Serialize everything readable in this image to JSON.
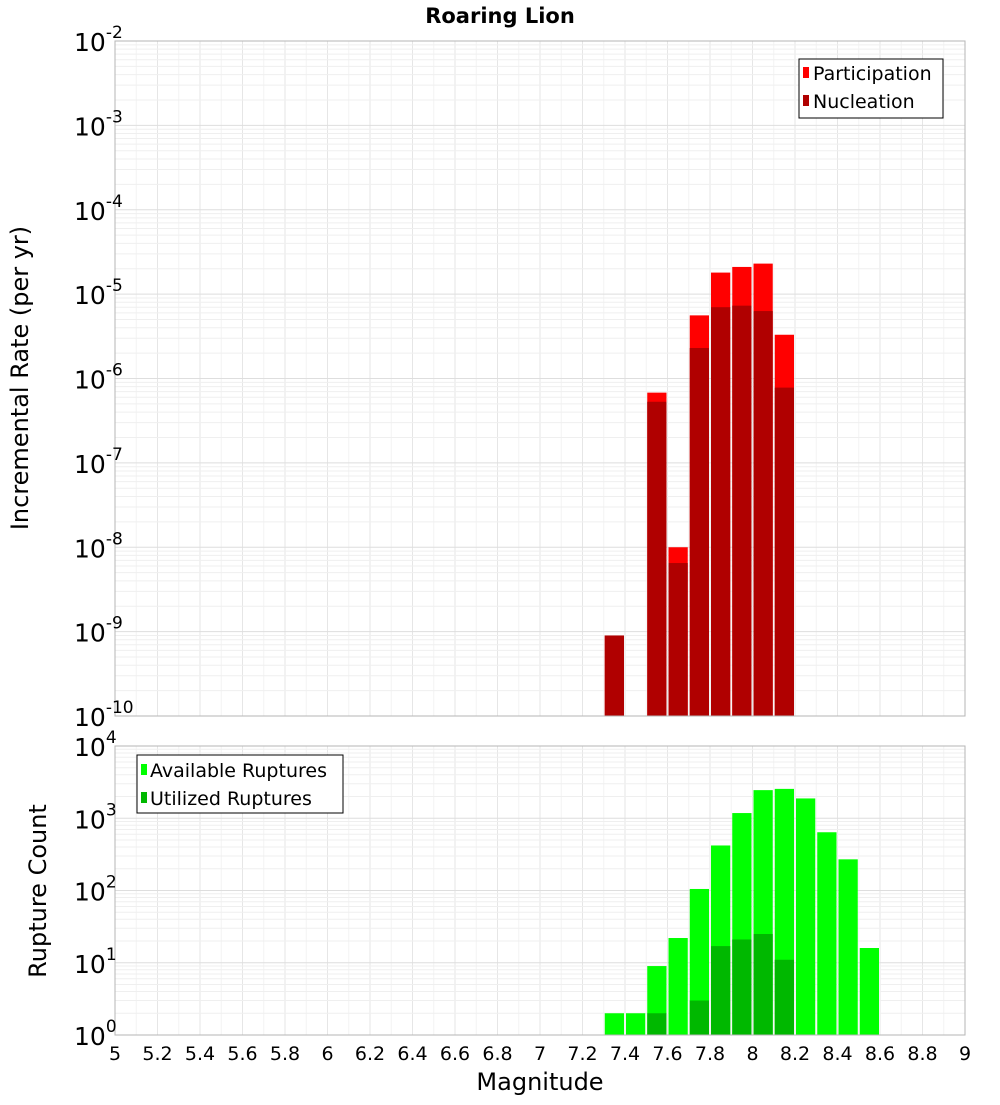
{
  "chart_data": [
    {
      "type": "bar",
      "title": "Roaring Lion",
      "xlabel": "",
      "ylabel": "Incremental Rate (per yr)",
      "yscale": "log",
      "xlim": [
        5,
        9
      ],
      "ylim_exponents": [
        -10,
        -2
      ],
      "ytick_labels": [
        "10^-10",
        "10^-9",
        "10^-8",
        "10^-7",
        "10^-6",
        "10^-5",
        "10^-4",
        "10^-3",
        "10^-2"
      ],
      "bin_width": 0.1,
      "legend_position": "top-right",
      "series": [
        {
          "name": "Participation",
          "color": "#ff0000",
          "points": [
            {
              "x": 7.35,
              "y": 9e-10
            },
            {
              "x": 7.55,
              "y": 6.8e-07
            },
            {
              "x": 7.65,
              "y": 1e-08
            },
            {
              "x": 7.75,
              "y": 5.6e-06
            },
            {
              "x": 7.85,
              "y": 1.8e-05
            },
            {
              "x": 7.95,
              "y": 2.1e-05
            },
            {
              "x": 8.05,
              "y": 2.3e-05
            },
            {
              "x": 8.15,
              "y": 3.3e-06
            }
          ]
        },
        {
          "name": "Nucleation",
          "color": "#b00000",
          "points": [
            {
              "x": 7.35,
              "y": 9e-10
            },
            {
              "x": 7.55,
              "y": 5.3e-07
            },
            {
              "x": 7.65,
              "y": 6.5e-09
            },
            {
              "x": 7.75,
              "y": 2.3e-06
            },
            {
              "x": 7.85,
              "y": 7e-06
            },
            {
              "x": 7.95,
              "y": 7.3e-06
            },
            {
              "x": 8.05,
              "y": 6.3e-06
            },
            {
              "x": 8.15,
              "y": 7.8e-07
            }
          ]
        }
      ]
    },
    {
      "type": "bar",
      "title": "",
      "xlabel": "Magnitude",
      "ylabel": "Rupture Count",
      "yscale": "log",
      "xlim": [
        5,
        9
      ],
      "ylim_exponents": [
        0,
        4
      ],
      "ytick_labels": [
        "10^0",
        "10^1",
        "10^2",
        "10^3",
        "10^4"
      ],
      "xtick_labels": [
        "5",
        "5.2",
        "5.4",
        "5.6",
        "5.8",
        "6",
        "6.2",
        "6.4",
        "6.6",
        "6.8",
        "7",
        "7.2",
        "7.4",
        "7.6",
        "7.8",
        "8",
        "8.2",
        "8.4",
        "8.6",
        "8.8",
        "9"
      ],
      "bin_width": 0.1,
      "legend_position": "top-left",
      "series": [
        {
          "name": "Available Ruptures",
          "color": "#00ff00",
          "points": [
            {
              "x": 7.35,
              "y": 2
            },
            {
              "x": 7.45,
              "y": 2
            },
            {
              "x": 7.55,
              "y": 9
            },
            {
              "x": 7.65,
              "y": 22
            },
            {
              "x": 7.75,
              "y": 105
            },
            {
              "x": 7.85,
              "y": 420
            },
            {
              "x": 7.95,
              "y": 1180
            },
            {
              "x": 8.05,
              "y": 2450
            },
            {
              "x": 8.15,
              "y": 2550
            },
            {
              "x": 8.25,
              "y": 1880
            },
            {
              "x": 8.35,
              "y": 640
            },
            {
              "x": 8.45,
              "y": 270
            },
            {
              "x": 8.55,
              "y": 16
            }
          ]
        },
        {
          "name": "Utilized Ruptures",
          "color": "#00b800",
          "points": [
            {
              "x": 7.35,
              "y": 1
            },
            {
              "x": 7.55,
              "y": 2
            },
            {
              "x": 7.65,
              "y": 1
            },
            {
              "x": 7.75,
              "y": 3
            },
            {
              "x": 7.85,
              "y": 17
            },
            {
              "x": 7.95,
              "y": 21
            },
            {
              "x": 8.05,
              "y": 25
            },
            {
              "x": 8.15,
              "y": 11
            },
            {
              "x": 8.25,
              "y": 1
            }
          ]
        }
      ]
    }
  ]
}
